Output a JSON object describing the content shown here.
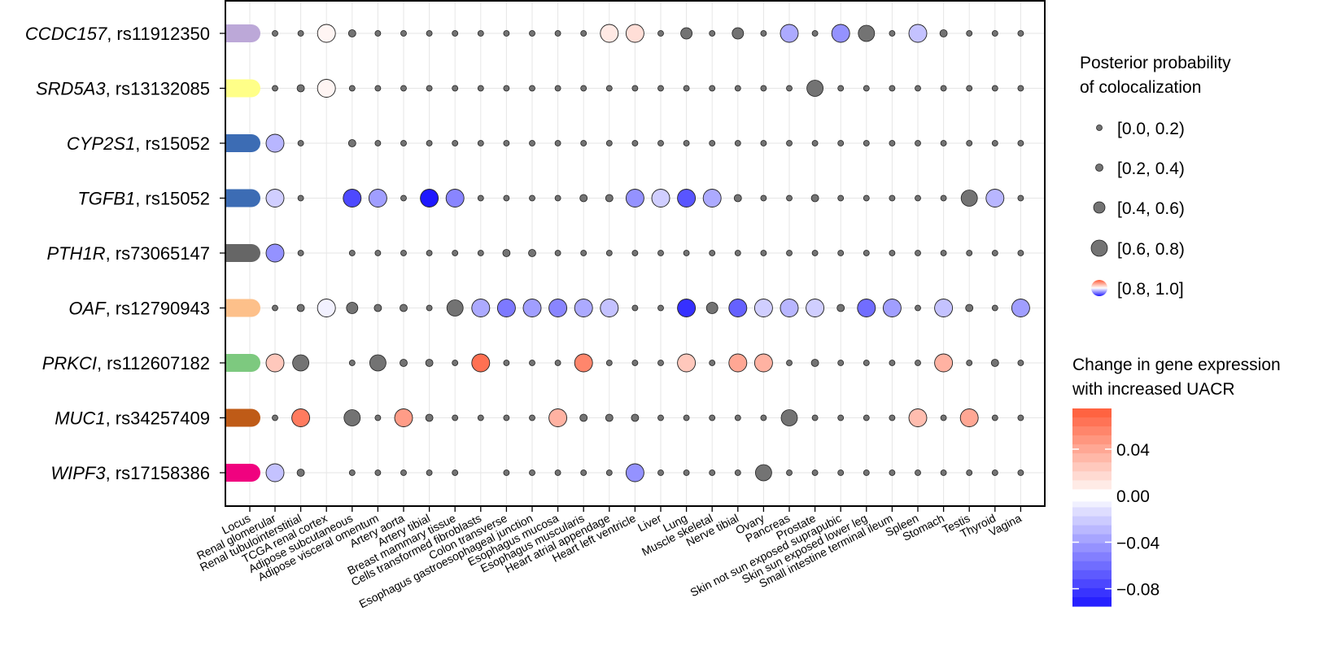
{
  "chart_data": {
    "type": "dot-matrix",
    "rows": [
      {
        "gene": "CCDC157",
        "snp": "rs11912350",
        "locus_color": "#BCA8D8"
      },
      {
        "gene": "SRD5A3",
        "snp": "rs13132085",
        "locus_color": "#FFFF88"
      },
      {
        "gene": "CYP2S1",
        "snp": "rs15052",
        "locus_color": "#3C6CB4"
      },
      {
        "gene": "TGFB1",
        "snp": "rs15052",
        "locus_color": "#3C6CB4"
      },
      {
        "gene": "PTH1R",
        "snp": "rs73065147",
        "locus_color": "#666666"
      },
      {
        "gene": "OAF",
        "snp": "rs12790943",
        "locus_color": "#FDC08A"
      },
      {
        "gene": "PRKCI",
        "snp": "rs112607182",
        "locus_color": "#7DC97F"
      },
      {
        "gene": "MUC1",
        "snp": "rs34257409",
        "locus_color": "#BF5B17"
      },
      {
        "gene": "WIPF3",
        "snp": "rs17158386",
        "locus_color": "#F0027F"
      }
    ],
    "locus_label": "Locus",
    "columns": [
      "Renal glomerular",
      "Renal tubulointerstitial",
      "TCGA renal cortex",
      "Adipose subcutaneous",
      "Adipose visceral omentum",
      "Artery aorta",
      "Artery tibial",
      "Breast mammary tissue",
      "Cells transformed fibroblasts",
      "Colon transverse",
      "Esophagus gastroesophageal junction",
      "Esophagus mucosa",
      "Esophagus muscularis",
      "Heart atrial appendage",
      "Heart left ventricle",
      "Liver",
      "Lung",
      "Muscle skeletal",
      "Nerve tibial",
      "Ovary",
      "Pancreas",
      "Prostate",
      "Skin not sun exposed suprapubic",
      "Skin sun exposed lower leg",
      "Small intestine terminal ileum",
      "Spleen",
      "Stomach",
      "Testis",
      "Thyroid",
      "Vagina"
    ],
    "pp_bins": [
      "[0.0, 0.2)",
      "[0.2, 0.4)",
      "[0.4, 0.6)",
      "[0.6, 0.8)",
      "[0.8, 1.0]"
    ],
    "grid_pp_bin": [
      [
        0,
        0,
        4,
        1,
        0,
        0,
        0,
        0,
        0,
        0,
        0,
        0,
        0,
        4,
        4,
        0,
        2,
        0,
        2,
        0,
        4,
        0,
        4,
        3,
        0,
        4,
        1,
        0,
        0,
        0
      ],
      [
        0,
        1,
        4,
        0,
        0,
        0,
        0,
        0,
        0,
        0,
        0,
        0,
        0,
        0,
        0,
        0,
        0,
        0,
        0,
        0,
        0,
        3,
        0,
        0,
        0,
        0,
        0,
        0,
        0,
        0
      ],
      [
        4,
        0,
        null,
        1,
        0,
        0,
        0,
        0,
        0,
        0,
        0,
        0,
        0,
        0,
        0,
        0,
        0,
        0,
        0,
        0,
        0,
        0,
        0,
        0,
        0,
        0,
        0,
        0,
        0,
        0
      ],
      [
        4,
        0,
        null,
        4,
        4,
        0,
        4,
        4,
        0,
        0,
        0,
        0,
        1,
        1,
        4,
        4,
        4,
        4,
        1,
        0,
        0,
        1,
        0,
        0,
        0,
        0,
        0,
        3,
        4,
        0
      ],
      [
        4,
        0,
        null,
        0,
        0,
        0,
        0,
        0,
        0,
        1,
        1,
        0,
        0,
        0,
        0,
        0,
        0,
        0,
        0,
        0,
        0,
        0,
        0,
        0,
        0,
        0,
        0,
        0,
        0,
        0
      ],
      [
        0,
        1,
        4,
        2,
        1,
        1,
        0,
        3,
        4,
        4,
        4,
        4,
        4,
        4,
        0,
        0,
        4,
        2,
        4,
        4,
        4,
        4,
        1,
        4,
        4,
        0,
        4,
        1,
        0,
        4
      ],
      [
        4,
        3,
        null,
        0,
        3,
        1,
        1,
        0,
        4,
        0,
        0,
        0,
        4,
        0,
        0,
        0,
        4,
        0,
        4,
        4,
        0,
        1,
        0,
        0,
        0,
        0,
        4,
        0,
        1,
        0
      ],
      [
        0,
        4,
        null,
        3,
        0,
        4,
        1,
        0,
        0,
        0,
        0,
        4,
        1,
        1,
        1,
        0,
        0,
        0,
        0,
        0,
        3,
        0,
        0,
        0,
        0,
        4,
        0,
        4,
        0,
        0
      ],
      [
        4,
        1,
        null,
        0,
        0,
        0,
        0,
        0,
        null,
        0,
        0,
        0,
        0,
        0,
        4,
        0,
        0,
        0,
        0,
        3,
        0,
        0,
        0,
        0,
        0,
        0,
        0,
        0,
        0,
        0
      ]
    ],
    "grid_change": [
      [
        0,
        0,
        0.0,
        0,
        0,
        0,
        0,
        0,
        0,
        0,
        0,
        0,
        0,
        0.01,
        0.015,
        0,
        0,
        0,
        0,
        0,
        -0.035,
        0,
        -0.045,
        0,
        0,
        -0.025,
        0,
        0,
        0,
        0
      ],
      [
        0,
        0,
        0.0,
        0,
        0,
        0,
        0,
        0,
        0,
        0,
        0,
        0,
        0,
        0,
        0,
        0,
        0,
        0,
        0,
        0,
        0,
        0,
        0,
        0,
        0,
        0,
        0,
        0,
        0,
        0
      ],
      [
        -0.03,
        0,
        null,
        0,
        0,
        0,
        0,
        0,
        0,
        0,
        0,
        0,
        0,
        0,
        0,
        0,
        0,
        0,
        0,
        0,
        0,
        0,
        0,
        0,
        0,
        0,
        0,
        0,
        0,
        0
      ],
      [
        -0.02,
        0,
        null,
        -0.075,
        -0.04,
        0,
        -0.095,
        -0.05,
        0,
        0,
        0,
        0,
        0,
        0,
        -0.045,
        -0.02,
        -0.07,
        -0.035,
        0,
        0,
        0,
        0,
        0,
        0,
        0,
        0,
        0,
        0,
        -0.03,
        0
      ],
      [
        -0.045,
        0,
        null,
        0,
        0,
        0,
        0,
        0,
        0,
        0,
        0,
        0,
        0,
        0,
        0,
        0,
        0,
        0,
        0,
        0,
        0,
        0,
        0,
        0,
        0,
        0,
        0,
        0,
        0,
        0
      ],
      [
        0,
        0,
        -0.005,
        0,
        0,
        0,
        0,
        0,
        -0.035,
        -0.055,
        -0.04,
        -0.05,
        -0.035,
        -0.025,
        0,
        0,
        -0.085,
        0,
        -0.065,
        -0.02,
        -0.03,
        -0.02,
        0,
        -0.06,
        -0.04,
        0,
        -0.025,
        0,
        0,
        -0.04
      ],
      [
        0.025,
        0,
        null,
        0,
        0,
        0,
        0,
        0,
        0.065,
        0,
        0,
        0,
        0.055,
        0,
        0,
        0,
        0.025,
        0,
        0.04,
        0.035,
        0,
        0,
        0,
        0,
        0,
        0,
        0.035,
        0,
        0,
        0
      ],
      [
        0,
        0.06,
        null,
        0,
        0,
        0.045,
        0,
        0,
        0,
        0,
        0,
        0.035,
        0,
        0,
        0,
        0,
        0,
        0,
        0,
        0,
        0,
        0,
        0,
        0,
        0,
        0.03,
        0,
        0.04,
        0,
        0
      ],
      [
        -0.025,
        0,
        null,
        0,
        0,
        0,
        0,
        0,
        null,
        0,
        0,
        0,
        0,
        0,
        -0.045,
        0,
        0,
        0,
        0,
        0,
        0,
        0,
        0,
        0,
        0,
        0,
        0,
        0,
        0,
        0
      ]
    ],
    "legend": {
      "size_title_1": "Posterior probability",
      "size_title_2": "of colocalization",
      "color_title_1": "Change in gene expression",
      "color_title_2": "with increased UACR",
      "color_ticks": [
        0.04,
        0.0,
        -0.04,
        -0.08
      ],
      "color_tick_labels": [
        "0.04",
        "0.00",
        "−0.04",
        "−0.08"
      ],
      "color_range": [
        -0.095,
        0.075
      ],
      "high_color": "#FF5A37",
      "low_color": "#1E18FF",
      "mid_color": "#FFFFFF"
    }
  }
}
